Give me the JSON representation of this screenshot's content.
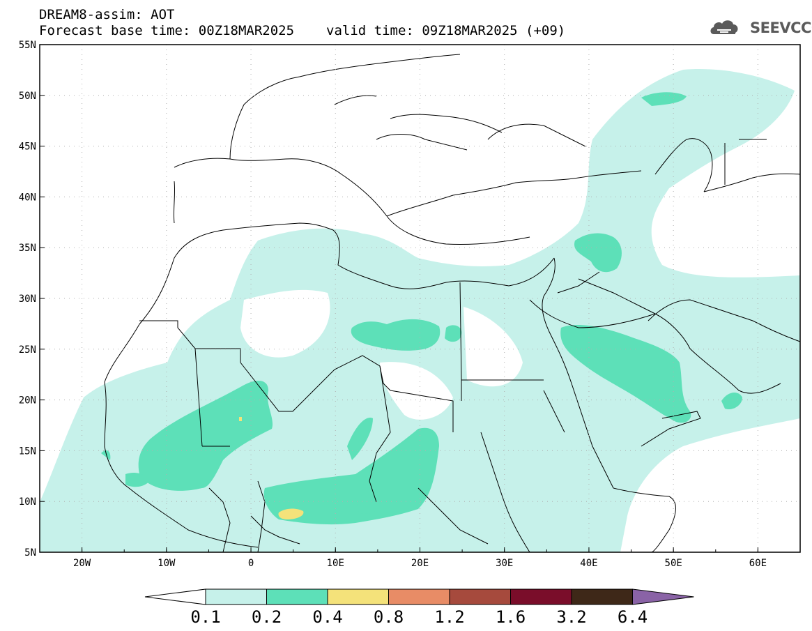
{
  "header": {
    "title": "DREAM8-assim: AOT",
    "base_time": "Forecast base time: 00Z18MAR2025",
    "valid_time": "valid time: 09Z18MAR2025 (+09)"
  },
  "logo": {
    "text": "SEEVCCC",
    "icon": "cloud-icon"
  },
  "map": {
    "lat_labels": [
      "55N",
      "50N",
      "45N",
      "40N",
      "35N",
      "30N",
      "25N",
      "20N",
      "15N",
      "10N",
      "5N"
    ],
    "lon_labels": [
      "20W",
      "10W",
      "0",
      "10E",
      "20E",
      "30E",
      "40E",
      "50E",
      "60E"
    ],
    "extent": {
      "lon_min": -25,
      "lon_max": 65,
      "lat_min": 5,
      "lat_max": 55
    }
  },
  "colorbar": {
    "levels": [
      "0.1",
      "0.2",
      "0.4",
      "0.8",
      "1.2",
      "1.6",
      "3.2",
      "6.4"
    ],
    "colors": [
      "#ffffff",
      "#c6f1ea",
      "#5de0b8",
      "#f4e27a",
      "#e88c66",
      "#a64a3d",
      "#7a0d2a",
      "#3e2818",
      "#8a63a6"
    ]
  },
  "aot_colors": {
    "level1": "#c6f1ea",
    "level2": "#5de0b8",
    "level3": "#f4e27a"
  }
}
